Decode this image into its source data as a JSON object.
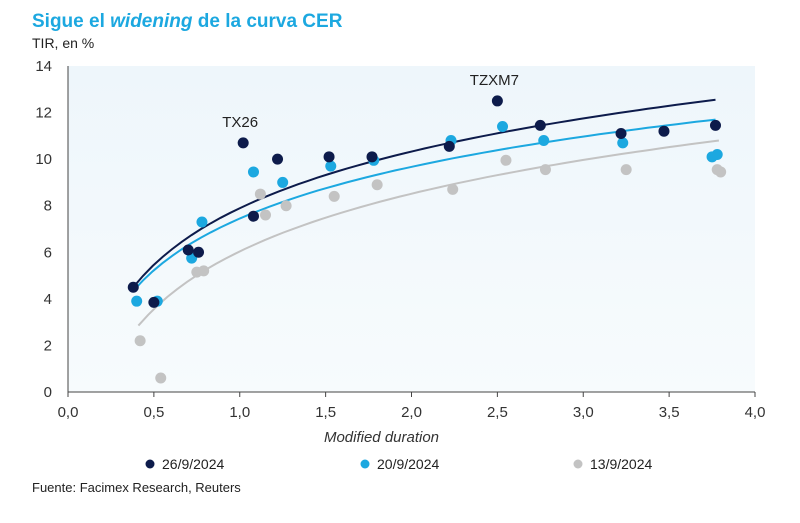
{
  "header": {
    "title_pre": "Sigue el ",
    "title_em": "widening",
    "title_post": " de la curva CER",
    "subtitle": "TIR, en %"
  },
  "footer": {
    "source": "Fuente: Facimex Research, Reuters"
  },
  "chart_data": {
    "type": "scatter",
    "xlabel": "Modified duration",
    "ylabel": "TIR, en %",
    "xlim": [
      0,
      4
    ],
    "ylim": [
      0,
      14
    ],
    "x_ticks": [
      0,
      0.5,
      1,
      1.5,
      2,
      2.5,
      3,
      3.5,
      4
    ],
    "x_tick_labels": [
      "0,0",
      "0,5",
      "1,0",
      "1,5",
      "2,0",
      "2,5",
      "3,0",
      "3,5",
      "4,0"
    ],
    "y_ticks": [
      0,
      2,
      4,
      6,
      8,
      10,
      12,
      14
    ],
    "y_tick_labels": [
      "0",
      "2",
      "4",
      "6",
      "8",
      "10",
      "12",
      "14"
    ],
    "series": [
      {
        "name": "26/9/2024",
        "color": "#0d1b4b",
        "points": [
          [
            0.38,
            4.5
          ],
          [
            0.5,
            3.85
          ],
          [
            0.7,
            6.1
          ],
          [
            0.76,
            6.0
          ],
          [
            1.02,
            10.7
          ],
          [
            1.08,
            7.55
          ],
          [
            1.22,
            10.0
          ],
          [
            1.52,
            10.1
          ],
          [
            1.77,
            10.1
          ],
          [
            2.22,
            10.55
          ],
          [
            2.5,
            12.5
          ],
          [
            2.75,
            11.45
          ],
          [
            3.22,
            11.1
          ],
          [
            3.47,
            11.2
          ],
          [
            3.77,
            11.45
          ]
        ],
        "trend": [
          [
            0.38,
            4.5
          ],
          [
            3.77,
            12.55
          ]
        ]
      },
      {
        "name": "20/9/2024",
        "color": "#1ca8e0",
        "points": [
          [
            0.4,
            3.9
          ],
          [
            0.52,
            3.9
          ],
          [
            0.72,
            5.75
          ],
          [
            0.78,
            7.3
          ],
          [
            1.08,
            9.45
          ],
          [
            1.25,
            9.0
          ],
          [
            1.53,
            9.7
          ],
          [
            1.78,
            9.95
          ],
          [
            2.23,
            10.8
          ],
          [
            2.53,
            11.4
          ],
          [
            2.77,
            10.8
          ],
          [
            3.23,
            10.7
          ],
          [
            3.75,
            10.1
          ],
          [
            3.78,
            10.2
          ]
        ],
        "trend": [
          [
            0.38,
            4.35
          ],
          [
            3.77,
            11.7
          ]
        ]
      },
      {
        "name": "13/9/2024",
        "color": "#c3c3c3",
        "points": [
          [
            0.42,
            2.2
          ],
          [
            0.54,
            0.6
          ],
          [
            0.75,
            5.15
          ],
          [
            0.79,
            5.2
          ],
          [
            1.12,
            8.5
          ],
          [
            1.15,
            7.6
          ],
          [
            1.27,
            8.0
          ],
          [
            1.55,
            8.4
          ],
          [
            1.8,
            8.9
          ],
          [
            2.24,
            8.7
          ],
          [
            2.55,
            9.95
          ],
          [
            2.78,
            9.55
          ],
          [
            3.25,
            9.55
          ],
          [
            3.78,
            9.55
          ],
          [
            3.8,
            9.45
          ]
        ],
        "trend": [
          [
            0.41,
            2.85
          ],
          [
            3.79,
            10.8
          ]
        ]
      }
    ],
    "annotations": [
      {
        "text": "TX26",
        "x": 1.02,
        "y": 10.7
      },
      {
        "text": "TZXM7",
        "x": 2.5,
        "y": 12.5
      }
    ],
    "legend_position": "bottom"
  }
}
